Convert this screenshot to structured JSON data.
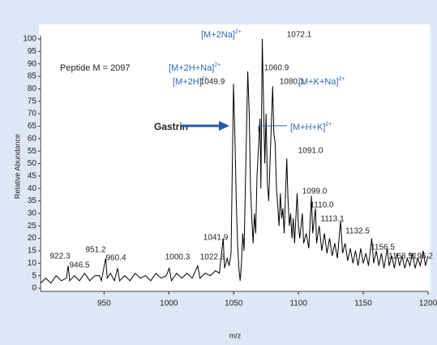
{
  "chart_data": {
    "type": "line",
    "x_label": "m/z",
    "y_label": "Relative Abundance",
    "peptide_note": "Peptide M = 2097",
    "gastrin_label": "Gastrin",
    "xlim": [
      901,
      1200
    ],
    "xticks": [
      950,
      1000,
      1050,
      1100,
      1150,
      1200
    ],
    "ylim": [
      0,
      100
    ],
    "yticks": [
      0,
      5,
      10,
      15,
      20,
      25,
      30,
      35,
      40,
      45,
      50,
      55,
      60,
      65,
      70,
      75,
      80,
      85,
      90,
      95,
      100
    ],
    "color": "#000000",
    "annotation_color": "#2a6ab0",
    "x": [
      901,
      905,
      909,
      913,
      917,
      921,
      922.3,
      923.5,
      927,
      931,
      935,
      939,
      943,
      946.5,
      948,
      951.2,
      952.5,
      955,
      958,
      960.4,
      962,
      966,
      970,
      974,
      978,
      982,
      986,
      990,
      994,
      998,
      1000.3,
      1002,
      1006,
      1010,
      1014,
      1018,
      1022.3,
      1024,
      1028,
      1032,
      1036,
      1039,
      1041.9,
      1043,
      1045,
      1046.5,
      1048,
      1049.9,
      1051,
      1052,
      1053,
      1054,
      1055,
      1056,
      1057,
      1058,
      1059,
      1060.9,
      1062,
      1063,
      1064,
      1065,
      1066,
      1067,
      1068,
      1069,
      1070.3,
      1071,
      1072.1,
      1073,
      1074,
      1075,
      1076,
      1077,
      1078,
      1080.1,
      1081,
      1082,
      1083,
      1084,
      1085,
      1086,
      1087,
      1088,
      1089,
      1091,
      1092,
      1093,
      1094,
      1095,
      1096,
      1097,
      1099,
      1100,
      1101,
      1103,
      1104,
      1106,
      1108,
      1110,
      1111,
      1113.1,
      1114,
      1116,
      1118,
      1120,
      1122,
      1124,
      1126,
      1128,
      1130,
      1132.5,
      1134,
      1136,
      1138,
      1140,
      1142,
      1144,
      1146,
      1148,
      1150,
      1152,
      1154,
      1156.5,
      1158,
      1160,
      1162,
      1164,
      1166,
      1168.5,
      1170,
      1172,
      1174,
      1176,
      1178,
      1180,
      1182,
      1184,
      1186,
      1188,
      1190,
      1192,
      1194,
      1196.2,
      1198,
      1200
    ],
    "values": [
      2,
      4,
      2,
      5,
      3,
      4,
      9,
      3,
      5,
      3,
      6,
      3,
      5,
      5,
      3,
      12,
      4,
      6,
      3,
      8,
      3,
      5,
      3,
      6,
      4,
      5,
      3,
      6,
      4,
      5,
      8,
      3,
      6,
      4,
      6,
      4,
      9,
      4,
      6,
      5,
      7,
      6,
      20,
      8,
      12,
      9,
      14,
      82,
      60,
      35,
      18,
      8,
      3,
      10,
      22,
      15,
      40,
      87,
      70,
      40,
      28,
      18,
      30,
      22,
      45,
      55,
      68,
      40,
      100,
      75,
      50,
      70,
      42,
      35,
      50,
      81,
      62,
      58,
      40,
      33,
      25,
      38,
      28,
      32,
      22,
      52,
      35,
      25,
      30,
      20,
      28,
      18,
      38,
      25,
      20,
      30,
      18,
      22,
      16,
      37,
      22,
      32,
      18,
      25,
      15,
      22,
      14,
      20,
      13,
      18,
      12,
      27,
      14,
      18,
      11,
      16,
      10,
      15,
      9,
      16,
      10,
      14,
      9,
      20,
      10,
      15,
      9,
      14,
      8,
      16,
      9,
      13,
      8,
      14,
      9,
      13,
      8,
      12,
      9,
      14,
      8,
      12,
      9,
      15,
      9,
      13
    ],
    "peak_labels": [
      "922.3",
      "946.5",
      "951.2",
      "960.4",
      "1000.3",
      "1022.3",
      "1041.9",
      "1049.9",
      "1060.9",
      "1072.1",
      "1080.1",
      "1091.0",
      "1099.0",
      "1110.0",
      "1113.1",
      "1132.5",
      "1156.5",
      "1168.5",
      "1196.2"
    ],
    "ion_labels": [
      {
        "ion": "[M+2Na]",
        "charge": "2+"
      },
      {
        "ion": "[M+2H+Na]",
        "charge": "2+"
      },
      {
        "ion": "[M+2H]",
        "charge": "2+"
      },
      {
        "ion": "[M+K+Na]",
        "charge": "2+"
      },
      {
        "ion": "[M+H+K]",
        "charge": "2+"
      }
    ]
  }
}
